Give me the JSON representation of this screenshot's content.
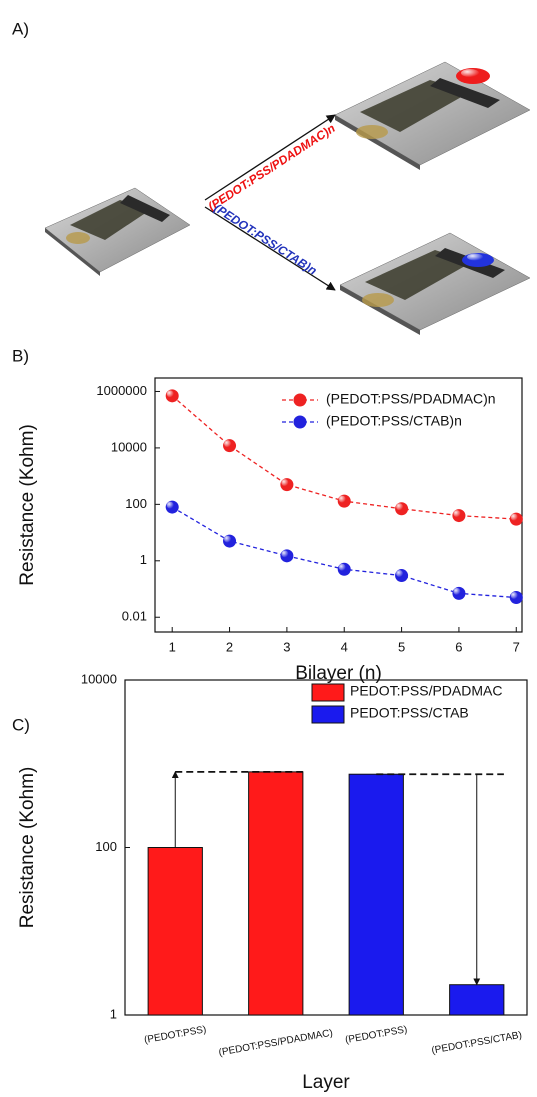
{
  "panel_labels": [
    "A)",
    "B)",
    "C)"
  ],
  "diagram": {
    "arrow_labels": [
      "(PEDOT:PSS/PDADMAC)n",
      "(PEDOT:PSS/CTAB)n"
    ]
  },
  "chart_data": [
    {
      "type": "line",
      "xlabel": "Bilayer (n)",
      "ylabel": "Resistance (Kohm)",
      "x": [
        1,
        2,
        3,
        4,
        5,
        6,
        7
      ],
      "series": [
        {
          "name": "(PEDOT:PSS/PDADMAC)n",
          "color": "#ee2222",
          "values": [
            700000,
            12000,
            500,
            130,
            70,
            40,
            30
          ]
        },
        {
          "name": "(PEDOT:PSS/CTAB)n",
          "color": "#2222dd",
          "values": [
            80,
            5,
            1.5,
            0.5,
            0.3,
            0.07,
            0.05
          ]
        }
      ],
      "xlim": [
        0.7,
        7.1
      ],
      "xticks": [
        1,
        2,
        3,
        4,
        5,
        6,
        7
      ],
      "ylim": [
        0.003,
        3000000
      ],
      "yticks": [
        0.01,
        1,
        100,
        10000,
        1000000
      ],
      "log_y": true,
      "line_style": "dashed",
      "legend": "upper-right"
    },
    {
      "type": "bar",
      "xlabel": "Layer",
      "ylabel": "Resistance (Kohm)",
      "categories": [
        "(PEDOT:PSS)",
        "(PEDOT:PSS/PDADMAC)",
        "(PEDOT:PSS)",
        "(PEDOT:PSS/CTAB)"
      ],
      "series": [
        {
          "name": "PEDOT:PSS/PDADMAC",
          "color": "#ff1a1a",
          "values": [
            100,
            800,
            null,
            null
          ]
        },
        {
          "name": "PEDOT:PSS/CTAB",
          "color": "#1a1aee",
          "values": [
            null,
            null,
            750,
            2.3
          ]
        }
      ],
      "ylim": [
        1,
        10000
      ],
      "yticks": [
        1,
        100,
        10000
      ],
      "log_y": true,
      "legend": "upper-right"
    }
  ]
}
